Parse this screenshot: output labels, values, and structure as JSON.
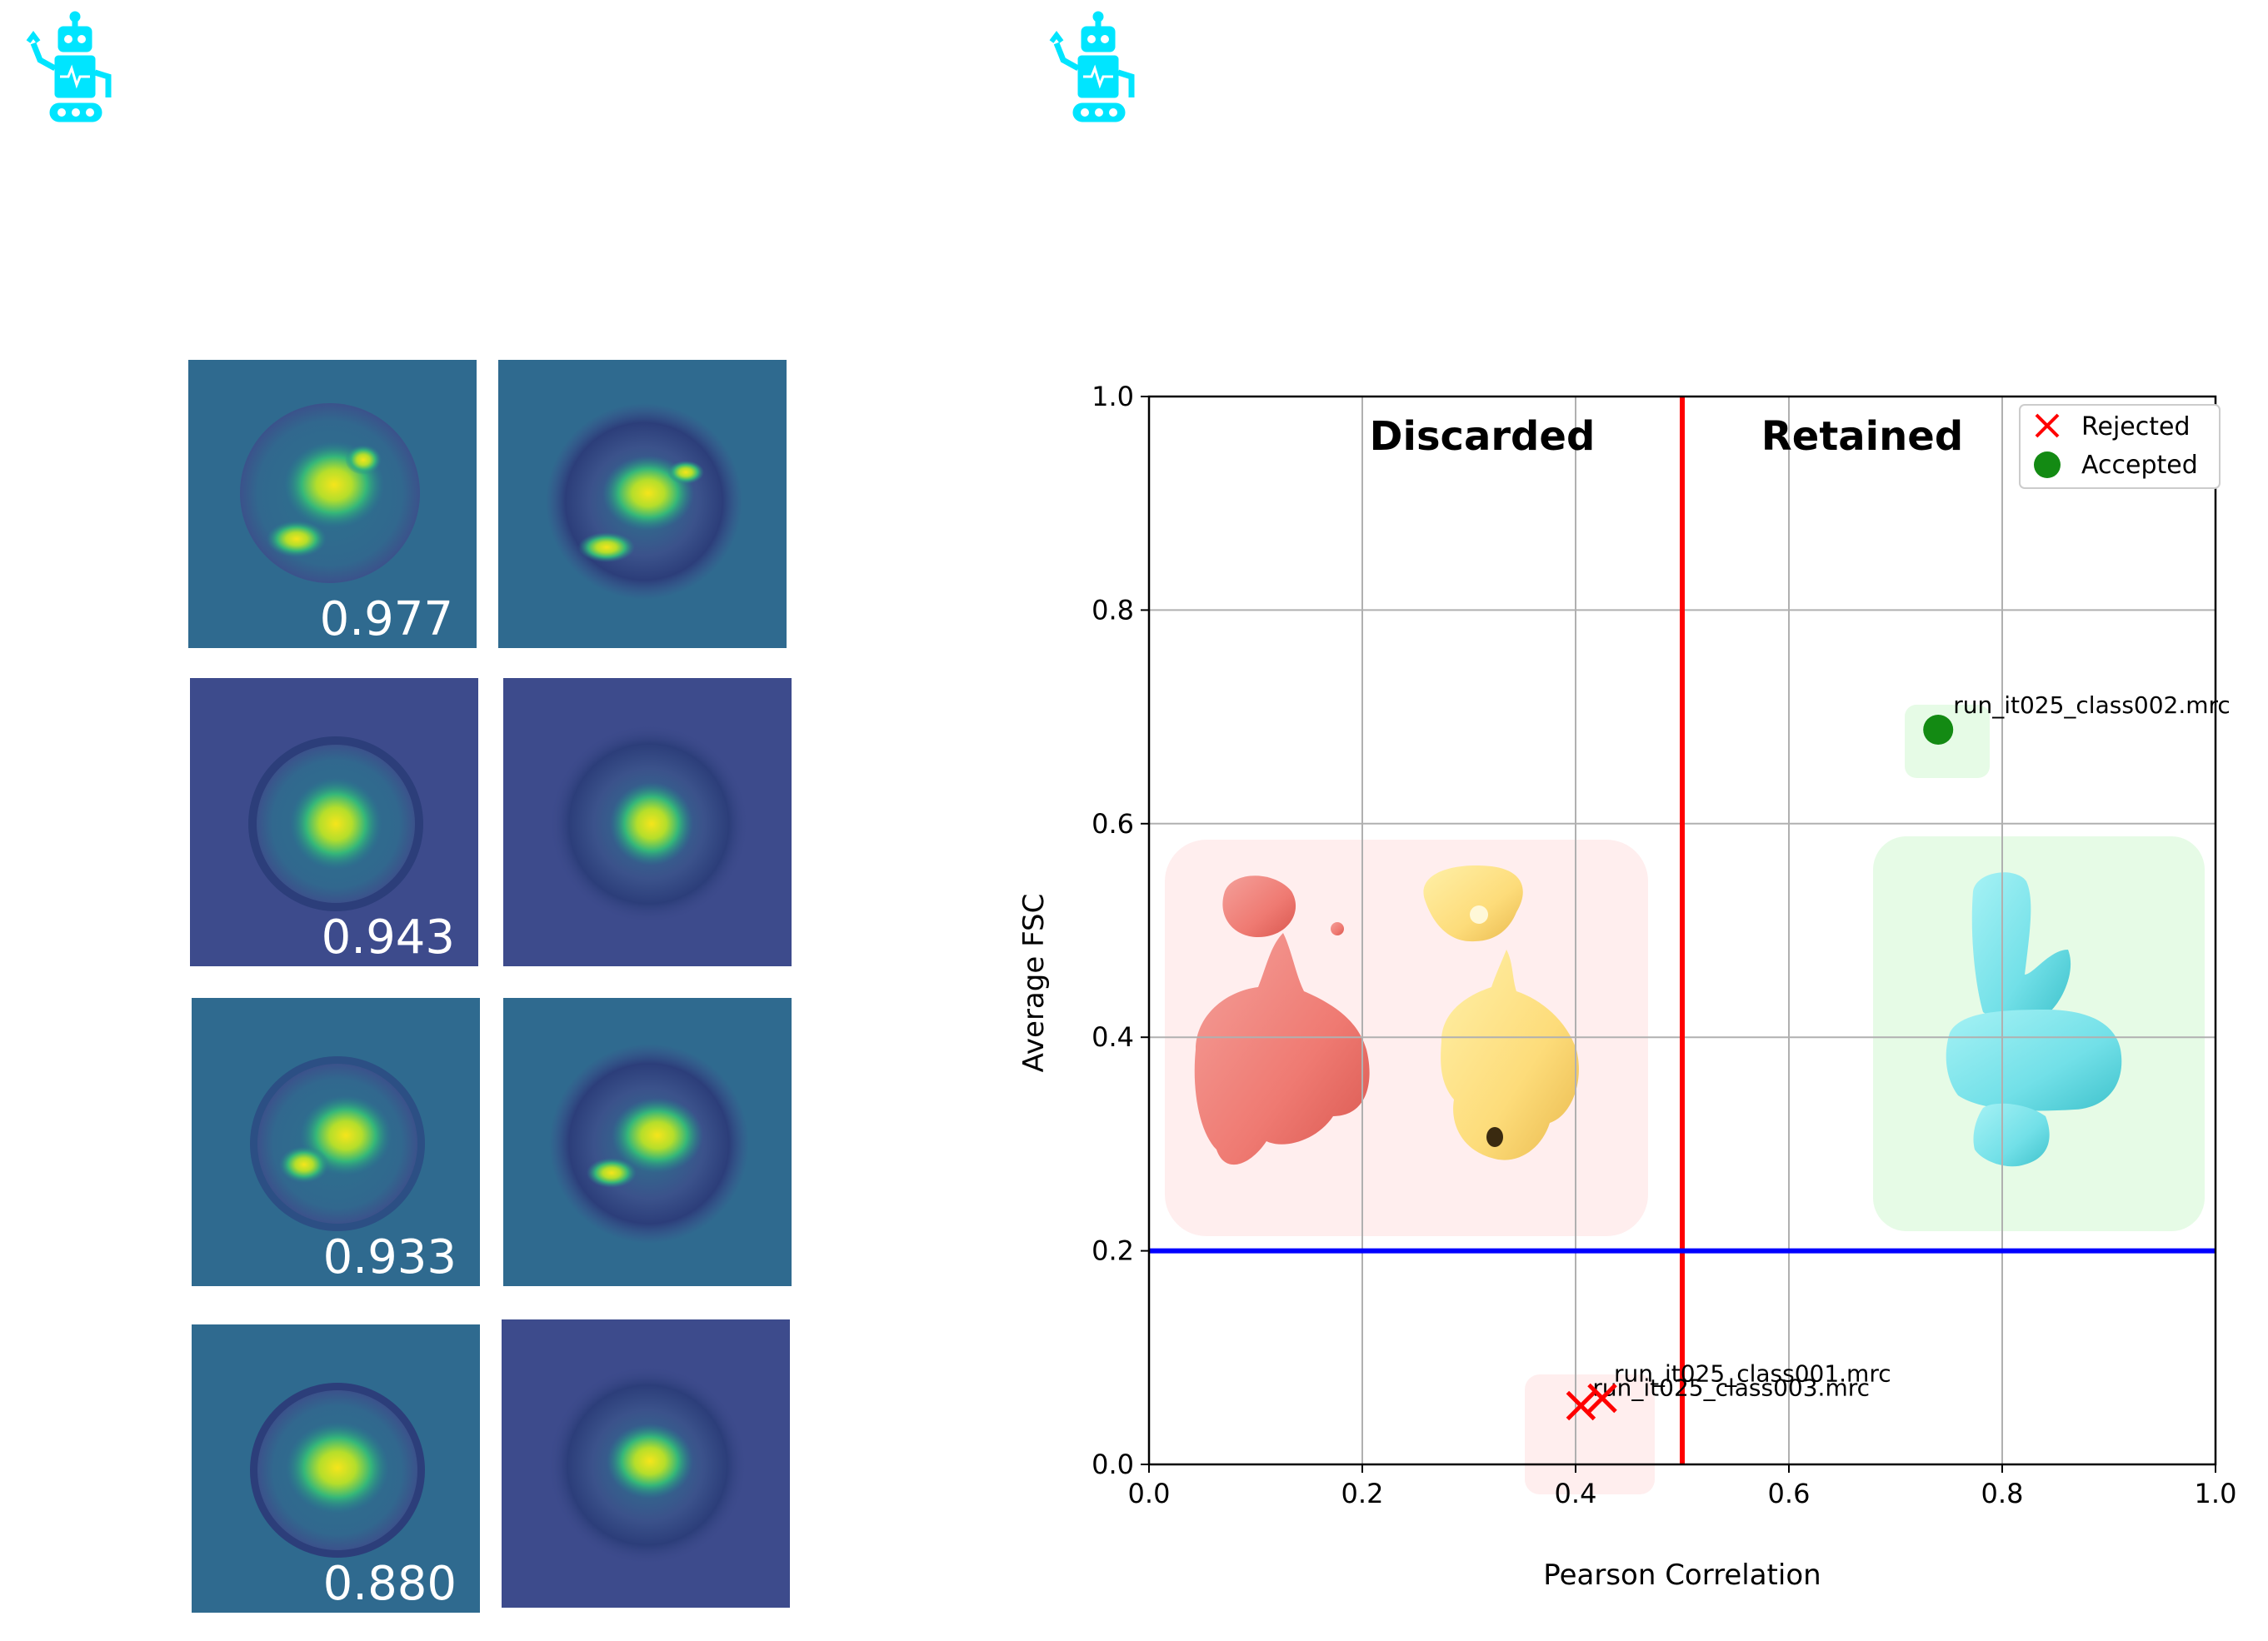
{
  "colors": {
    "robot": "#00e5ff",
    "panel_bg_teal": "#2f6a8f",
    "panel_bg_purple": "#3d4b8c",
    "threshold_vertical": "#ff0000",
    "threshold_horizontal": "#0000ff",
    "rejected": "#ff0000",
    "accepted": "#138a13"
  },
  "icons": [
    "robot-icon",
    "robot-icon"
  ],
  "panels": {
    "rows": [
      {
        "score": "0.977"
      },
      {
        "score": "0.943"
      },
      {
        "score": "0.933"
      },
      {
        "score": "0.880"
      }
    ]
  },
  "chart_data": {
    "type": "scatter",
    "xlabel": "Pearson Correlation",
    "ylabel": "Average FSC",
    "xlim": [
      0.0,
      1.0
    ],
    "ylim": [
      0.0,
      1.0
    ],
    "x_ticks": [
      "0.0",
      "0.2",
      "0.4",
      "0.6",
      "0.8",
      "1.0"
    ],
    "y_ticks": [
      "0.0",
      "0.2",
      "0.4",
      "0.6",
      "0.8",
      "1.0"
    ],
    "grid": true,
    "thresholds": {
      "x": 0.5,
      "y": 0.2
    },
    "regions": {
      "left": "Discarded",
      "right": "Retained"
    },
    "legend": {
      "placement": "top-right",
      "entries": [
        "Rejected",
        "Accepted"
      ]
    },
    "series": [
      {
        "name": "Rejected",
        "points": [
          {
            "x": 0.405,
            "y": 0.055,
            "label": "run_it025_class003.mrc"
          },
          {
            "x": 0.425,
            "y": 0.062,
            "label": "run_it025_class001.mrc"
          }
        ]
      },
      {
        "name": "Accepted",
        "points": [
          {
            "x": 0.74,
            "y": 0.688,
            "label": "run_it025_class002.mrc"
          }
        ]
      }
    ]
  }
}
